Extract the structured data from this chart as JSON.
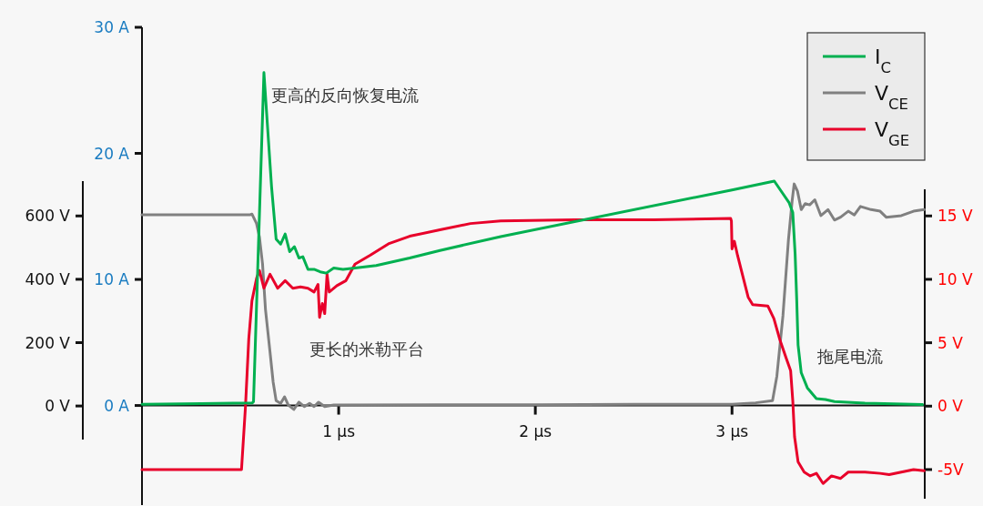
{
  "chart_data": {
    "type": "line",
    "xlim": [
      0,
      3.98
    ],
    "xticks": [
      {
        "value": 1,
        "label": "1 µs"
      },
      {
        "value": 2,
        "label": "2 µs"
      },
      {
        "value": 3,
        "label": "3 µs"
      }
    ],
    "ylim": [
      -7.9,
      30
    ],
    "yticks": [
      {
        "value": 0,
        "label": "0 A"
      },
      {
        "value": 10,
        "label": "10 A"
      },
      {
        "value": 20,
        "label": "20 A"
      },
      {
        "value": 30,
        "label": "30 A"
      }
    ],
    "y2lim": [
      -7.3,
      17.1
    ],
    "y2ticks": [
      {
        "value": -5,
        "label": "-5V"
      },
      {
        "value": 0,
        "label": "0 V"
      },
      {
        "value": 5,
        "label": "5 V"
      },
      {
        "value": 10,
        "label": "10 V"
      },
      {
        "value": 15,
        "label": "15 V"
      }
    ],
    "y3lim": [
      -106,
      710
    ],
    "y3ticks": [
      {
        "value": 0,
        "label": "0 V"
      },
      {
        "value": 200,
        "label": "200 V"
      },
      {
        "value": 400,
        "label": "400 V"
      },
      {
        "value": 600,
        "label": "600 V"
      }
    ],
    "legend": "top right",
    "line_style": "solid",
    "annotations": [
      "更高的反向恢复电流",
      "更长的米勒平台",
      "拖尾电流"
    ],
    "series": [
      {
        "name": "I$_{C}$",
        "color": "#00b050",
        "x": [
          0,
          0.3,
          0.56,
          0.567,
          0.62,
          0.659,
          0.682,
          0.705,
          0.728,
          0.751,
          0.775,
          0.798,
          0.818,
          0.844,
          0.875,
          0.906,
          0.937,
          0.975,
          1.022,
          1.083,
          1.191,
          1.361,
          1.515,
          1.824,
          3.0,
          3.215,
          3.29,
          3.309,
          3.321,
          3.329,
          3.336,
          3.352,
          3.383,
          3.429,
          3.475,
          3.521,
          3.676,
          3.969
        ],
        "values": [
          0.1,
          0.15,
          0.2,
          0.3,
          26.4,
          17.3,
          13.2,
          12.8,
          13.6,
          12.2,
          12.6,
          11.7,
          11.8,
          10.8,
          10.8,
          10.6,
          10.5,
          10.9,
          10.8,
          10.9,
          11.1,
          11.7,
          12.3,
          13.4,
          17.1,
          17.8,
          16.1,
          15.3,
          12.0,
          8.4,
          4.8,
          2.6,
          1.4,
          0.55,
          0.48,
          0.31,
          0.19,
          0.07
        ]
      },
      {
        "name": "V$_{CE}$",
        "color": "#808080",
        "axis": "y3",
        "x": [
          0,
          0.3,
          0.551,
          0.559,
          0.582,
          0.597,
          0.613,
          0.628,
          0.651,
          0.667,
          0.682,
          0.705,
          0.725,
          0.744,
          0.772,
          0.798,
          0.826,
          0.852,
          0.875,
          0.898,
          0.929,
          0.975,
          1.5,
          2.0,
          2.5,
          3.0,
          3.12,
          3.206,
          3.228,
          3.259,
          3.287,
          3.306,
          3.316,
          3.333,
          3.352,
          3.372,
          3.395,
          3.421,
          3.452,
          3.488,
          3.521,
          3.552,
          3.591,
          3.622,
          3.653,
          3.707,
          3.753,
          3.784,
          3.861,
          3.923,
          3.977
        ],
        "values": [
          604,
          604,
          604,
          606,
          577,
          534,
          448,
          304,
          170,
          75,
          17,
          8,
          29,
          3,
          -11,
          12,
          -2,
          8,
          -2,
          12,
          -2,
          3,
          4,
          4,
          5,
          5,
          10,
          17,
          94,
          285,
          525,
          649,
          701,
          678,
          620,
          639,
          635,
          651,
          601,
          620,
          587,
          596,
          615,
          603,
          630,
          620,
          615,
          596,
          601,
          615,
          620
        ]
      },
      {
        "name": "V$_{GE}$",
        "color": "#e8002a",
        "axis": "y2",
        "x": [
          0,
          0.3,
          0.506,
          0.526,
          0.543,
          0.559,
          0.583,
          0.597,
          0.62,
          0.651,
          0.69,
          0.728,
          0.767,
          0.806,
          0.844,
          0.875,
          0.895,
          0.903,
          0.917,
          0.929,
          0.941,
          0.952,
          0.991,
          1.037,
          1.083,
          1.16,
          1.253,
          1.361,
          1.515,
          1.67,
          1.824,
          2.2,
          2.6,
          2.993,
          2.997,
          3.0,
          3.012,
          3.028,
          3.059,
          3.082,
          3.105,
          3.182,
          3.213,
          3.244,
          3.275,
          3.298,
          3.309,
          3.318,
          3.336,
          3.367,
          3.398,
          3.429,
          3.463,
          3.506,
          3.552,
          3.591,
          3.676,
          3.753,
          3.799,
          3.861,
          3.923,
          3.977
        ],
        "values": [
          -5.0,
          -5.0,
          -5.0,
          -0.07,
          5.3,
          8.3,
          10.1,
          10.7,
          9.3,
          10.4,
          9.3,
          9.9,
          9.3,
          9.4,
          9.3,
          9.0,
          9.6,
          7.0,
          8.1,
          7.3,
          10.4,
          9.0,
          9.5,
          9.9,
          11.2,
          11.9,
          12.8,
          13.4,
          13.9,
          14.4,
          14.6,
          14.7,
          14.7,
          14.8,
          14.6,
          12.4,
          13.0,
          11.9,
          10.0,
          8.6,
          8.0,
          7.9,
          6.9,
          5.2,
          3.8,
          2.8,
          0.43,
          -2.4,
          -4.4,
          -5.2,
          -5.5,
          -5.3,
          -6.1,
          -5.5,
          -5.7,
          -5.2,
          -5.2,
          -5.3,
          -5.4,
          -5.2,
          -5.0,
          -5.1
        ]
      }
    ]
  }
}
